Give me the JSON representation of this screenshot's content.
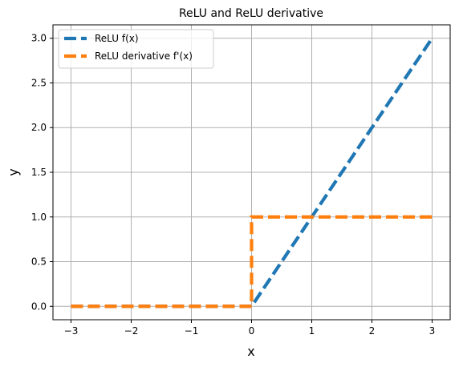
{
  "chart_data": {
    "type": "line",
    "title": "ReLU and ReLU derivative",
    "xlabel": "x",
    "ylabel": "y",
    "xlim": [
      -3.3,
      3.3
    ],
    "ylim": [
      -0.15,
      3.15
    ],
    "grid": true,
    "legend_position": "top-left",
    "x_ticks": [
      -3,
      -2,
      -1,
      0,
      1,
      2,
      3
    ],
    "x_tick_labels": [
      "−3",
      "−2",
      "−1",
      "0",
      "1",
      "2",
      "3"
    ],
    "y_ticks": [
      0.0,
      0.5,
      1.0,
      1.5,
      2.0,
      2.5,
      3.0
    ],
    "y_tick_labels": [
      "0.0",
      "0.5",
      "1.0",
      "1.5",
      "2.0",
      "2.5",
      "3.0"
    ],
    "series": [
      {
        "name": "ReLU f(x)",
        "color": "#1f77b4",
        "style": "dashed",
        "points": [
          [
            -3,
            0
          ],
          [
            0,
            0
          ],
          [
            3,
            3
          ]
        ]
      },
      {
        "name": "ReLU derivative f'(x)",
        "color": "#ff7f0e",
        "style": "dashed",
        "points": [
          [
            -3,
            0
          ],
          [
            0,
            0
          ],
          [
            0,
            1
          ],
          [
            3,
            1
          ]
        ]
      }
    ]
  }
}
